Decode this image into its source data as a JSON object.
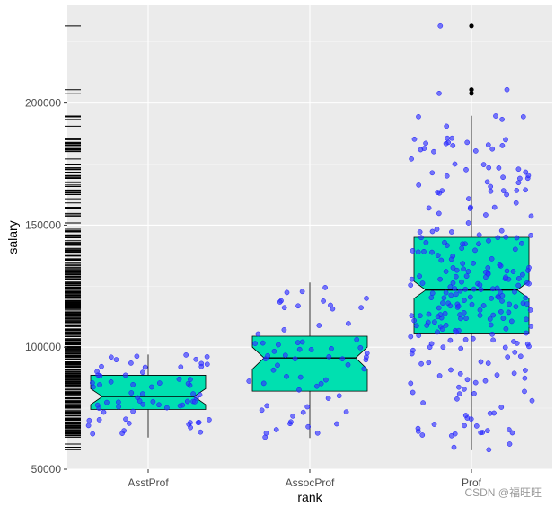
{
  "chart_data": {
    "type": "boxplot",
    "title": "",
    "xlabel": "rank",
    "ylabel": "salary",
    "categories": [
      "AsstProf",
      "AssocProf",
      "Prof"
    ],
    "ylim": [
      50000,
      240000
    ],
    "y_ticks": [
      50000,
      100000,
      150000,
      200000
    ],
    "y_tick_labels": [
      "50000",
      "100000",
      "150000",
      "200000"
    ],
    "notched": true,
    "box_fill": "#00E0B0",
    "point_color": "#3333FF",
    "panel_background": "#EBEBEB",
    "grid": true,
    "rug": true,
    "boxes": [
      {
        "category": "AsstProf",
        "min": 63000,
        "q1": 74500,
        "median": 79800,
        "q3": 88500,
        "max": 97000,
        "notch_low": 76500,
        "notch_high": 83000,
        "outliers": []
      },
      {
        "category": "AssocProf",
        "min": 62800,
        "q1": 82000,
        "median": 95600,
        "q3": 104500,
        "max": 126500,
        "notch_low": 91000,
        "notch_high": 100000,
        "outliers": []
      },
      {
        "category": "Prof",
        "min": 57800,
        "q1": 105800,
        "median": 123400,
        "q3": 145000,
        "max": 194800,
        "notch_low": 120000,
        "notch_high": 127000,
        "outliers": [
          204000,
          205500,
          231600
        ]
      }
    ],
    "point_counts": [
      67,
      64,
      266
    ]
  },
  "watermark": "CSDN @福旺旺"
}
